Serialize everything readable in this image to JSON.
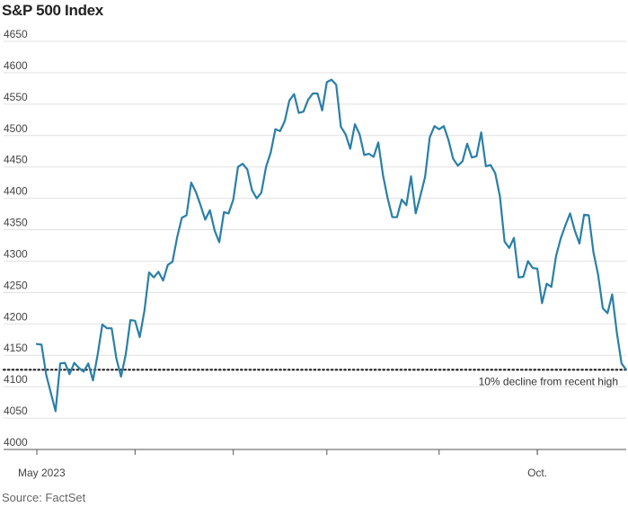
{
  "chart_data": {
    "type": "line",
    "title": "S&P 500 Index",
    "source": "Source: FactSet",
    "ylim": [
      4000,
      4650
    ],
    "yticks": [
      4000,
      4050,
      4100,
      4150,
      4200,
      4250,
      4300,
      4350,
      4400,
      4450,
      4500,
      4550,
      4600,
      4650
    ],
    "xtick_labels": [
      {
        "label": "May 2023",
        "index": 0
      },
      {
        "label": "Oct.",
        "index": 107
      }
    ],
    "xtick_marks": [
      21,
      42,
      62,
      86,
      107
    ],
    "grid": true,
    "series": [
      {
        "color": "#2a7fa8",
        "values": [
          4168,
          4167,
          4119,
          4090,
          4061,
          4137,
          4138,
          4120,
          4138,
          4130,
          4124,
          4137,
          4110,
          4151,
          4199,
          4193,
          4193,
          4145,
          4116,
          4151,
          4206,
          4205,
          4179,
          4221,
          4282,
          4274,
          4283,
          4269,
          4294,
          4299,
          4338,
          4369,
          4373,
          4425,
          4410,
          4389,
          4366,
          4381,
          4349,
          4330,
          4378,
          4376,
          4398,
          4450,
          4455,
          4446,
          4413,
          4400,
          4409,
          4450,
          4473,
          4510,
          4507,
          4523,
          4556,
          4566,
          4536,
          4538,
          4557,
          4567,
          4567,
          4540,
          4585,
          4589,
          4581,
          4514,
          4502,
          4479,
          4518,
          4502,
          4469,
          4471,
          4466,
          4489,
          4437,
          4400,
          4370,
          4370,
          4398,
          4389,
          4435,
          4376,
          4404,
          4434,
          4497,
          4515,
          4510,
          4515,
          4493,
          4463,
          4452,
          4459,
          4487,
          4465,
          4467,
          4505,
          4451,
          4453,
          4440,
          4403,
          4331,
          4321,
          4337,
          4274,
          4275,
          4300,
          4289,
          4288,
          4233,
          4264,
          4259,
          4308,
          4336,
          4357,
          4376,
          4349,
          4328,
          4374,
          4373,
          4314,
          4278,
          4225,
          4217,
          4247,
          4186,
          4137,
          4127
        ]
      }
    ],
    "reference_line": {
      "value": 4127,
      "label": "10% decline from recent high"
    }
  }
}
